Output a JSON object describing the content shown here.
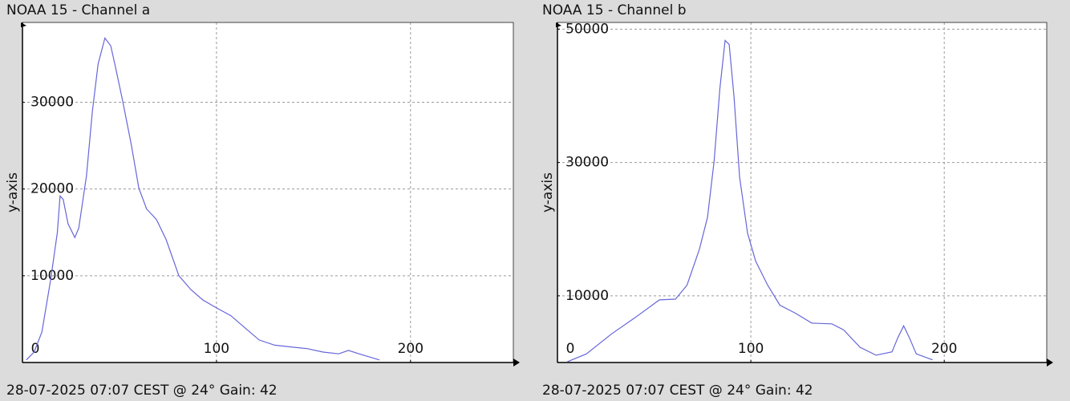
{
  "chart_data": [
    {
      "type": "line",
      "title": "NOAA 15 - Channel a",
      "footer": "28-07-2025 07:07 CEST @ 24° Gain: 42",
      "y_label": "y-axis",
      "x": [
        2,
        6,
        10,
        14.5,
        18,
        19.4,
        21,
        23.5,
        27,
        29,
        33,
        36,
        39,
        42.5,
        45.5,
        48,
        51.5,
        56,
        60,
        64,
        69,
        74,
        80.6,
        86.8,
        93,
        100,
        107.4,
        113.6,
        122,
        130,
        138,
        146.7,
        155,
        163,
        168,
        173.5,
        184
      ],
      "values": [
        300,
        1200,
        3500,
        9500,
        15000,
        19200,
        18800,
        16000,
        14400,
        15500,
        21500,
        28900,
        34400,
        37400,
        36500,
        34000,
        30300,
        25200,
        20100,
        17700,
        16500,
        14200,
        10000,
        8400,
        7200,
        6300,
        5400,
        4200,
        2600,
        2000,
        1800,
        1600,
        1200,
        1000,
        1400,
        1000,
        300
      ],
      "color": "#6666d9",
      "xlim": [
        0,
        253
      ],
      "ylim": [
        0,
        39200
      ],
      "xticks": [
        0,
        100,
        200
      ],
      "yticks": [
        10000,
        20000,
        30000
      ],
      "grid": true
    },
    {
      "type": "line",
      "title": "NOAA 15 - Channel b",
      "footer": "28-07-2025 07:07 CEST @ 24° Gain: 42",
      "y_label": "y-axis",
      "x": [
        5,
        15,
        28,
        40,
        52.7,
        61,
        67,
        73.4,
        77.6,
        81,
        84,
        86.7,
        88.8,
        91.3,
        94.2,
        98.3,
        102.5,
        108.7,
        115,
        123,
        131.5,
        141.9,
        148,
        156.4,
        164.7,
        173,
        176,
        179,
        182,
        185.5,
        194
      ],
      "values": [
        100,
        1300,
        4300,
        6700,
        9400,
        9500,
        11600,
        17000,
        21800,
        30200,
        41100,
        48300,
        47700,
        39900,
        27800,
        19400,
        15200,
        11600,
        8600,
        7400,
        5900,
        5800,
        4900,
        2300,
        1100,
        1600,
        3700,
        5500,
        3700,
        1300,
        400
      ],
      "color": "#6666d9",
      "xlim": [
        0,
        253
      ],
      "ylim": [
        0,
        51000
      ],
      "xticks": [
        0,
        100,
        200
      ],
      "yticks": [
        10000,
        30000,
        50000
      ],
      "grid": true
    }
  ]
}
